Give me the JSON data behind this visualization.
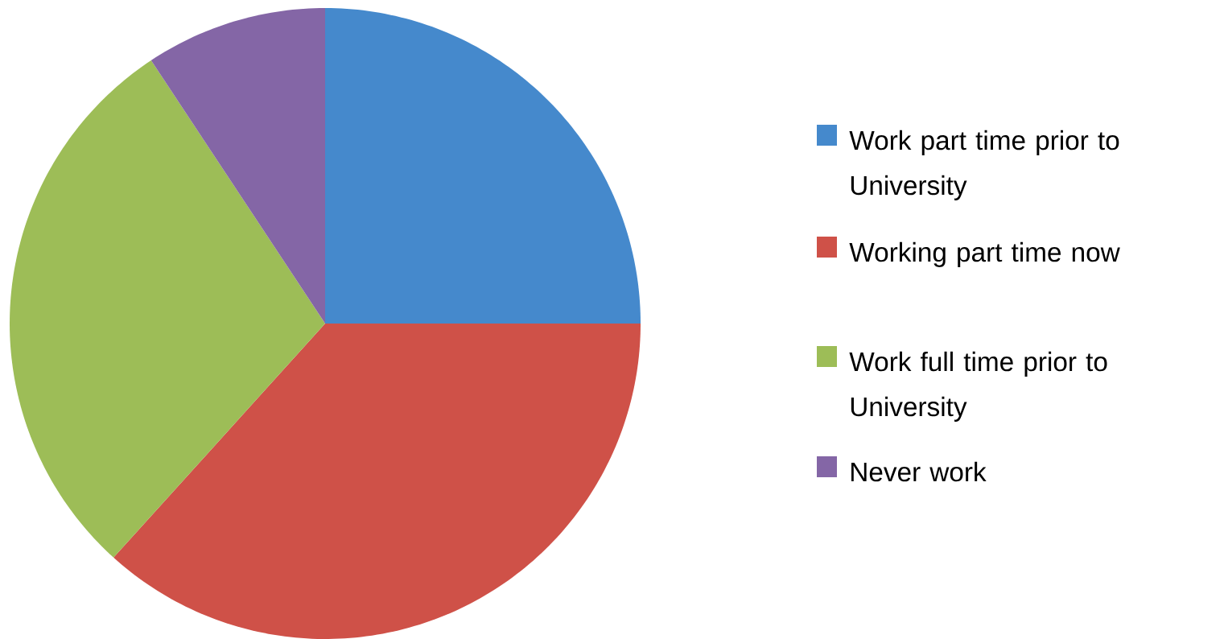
{
  "chart_data": {
    "type": "pie",
    "categories": [
      "Work part time prior to University",
      "Working part time now",
      "Work full time prior to University",
      "Never work"
    ],
    "values": [
      25,
      36.7,
      29,
      9.3
    ],
    "colors": [
      "#4589cc",
      "#cf5148",
      "#9dbd57",
      "#8466a6"
    ],
    "legend": "right"
  }
}
